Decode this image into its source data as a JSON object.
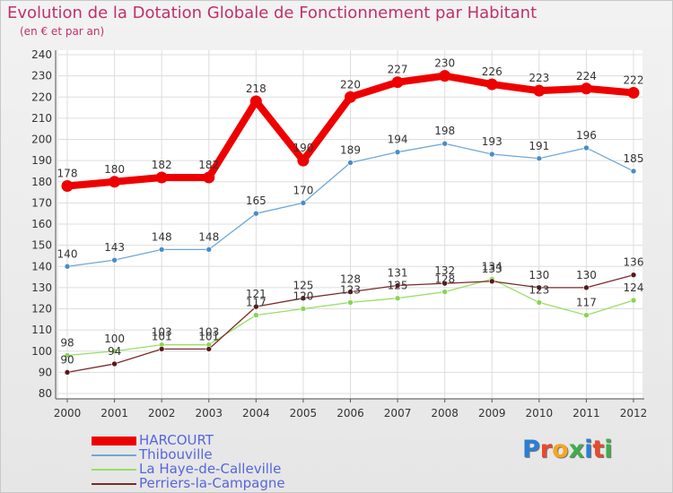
{
  "title": "Evolution de la Dotation Globale de Fonctionnement par Habitant",
  "subtitle": "(en € et par an)",
  "logo": {
    "text": "Proxiti",
    "colors": [
      "#2a7fd4",
      "#e84a2a",
      "#f5a623",
      "#3fae49",
      "#2a7fd4",
      "#e84a2a",
      "#3fae49"
    ]
  },
  "colors": {
    "title": "#c0306a",
    "legend_text": "#5566dd"
  },
  "chart_data": {
    "type": "line",
    "title": "Evolution de la Dotation Globale de Fonctionnement par Habitant",
    "xlabel": "",
    "ylabel": "(en € et par an)",
    "categories": [
      "2000",
      "2001",
      "2002",
      "2003",
      "2004",
      "2005",
      "2006",
      "2007",
      "2008",
      "2009",
      "2010",
      "2011",
      "2012"
    ],
    "y_ticks": [
      80,
      90,
      100,
      110,
      120,
      130,
      140,
      150,
      160,
      170,
      180,
      190,
      200,
      210,
      220,
      230,
      240
    ],
    "ylim": [
      80,
      240
    ],
    "grid": true,
    "legend_position": "bottom-left",
    "series": [
      {
        "name": "HARCOURT",
        "values": [
          178,
          180,
          182,
          182,
          218,
          190,
          220,
          227,
          230,
          226,
          223,
          224,
          222
        ],
        "color": "#ee0000",
        "thick": true
      },
      {
        "name": "Thibouville",
        "values": [
          140,
          143,
          148,
          148,
          165,
          170,
          189,
          194,
          198,
          193,
          191,
          196,
          185
        ],
        "color": "#6fa8d6",
        "marker": "#4a8cc8",
        "thick": false
      },
      {
        "name": "La Haye-de-Calleville",
        "values": [
          98,
          100,
          103,
          103,
          117,
          120,
          123,
          125,
          128,
          134,
          123,
          117,
          124
        ],
        "color": "#99dd66",
        "marker": "#88d455",
        "thick": false
      },
      {
        "name": "Perriers-la-Campagne",
        "values": [
          90,
          94,
          101,
          101,
          121,
          125,
          128,
          131,
          132,
          133,
          130,
          130,
          136
        ],
        "color": "#7a2a2a",
        "marker": "#5a1818",
        "thick": false
      }
    ]
  }
}
